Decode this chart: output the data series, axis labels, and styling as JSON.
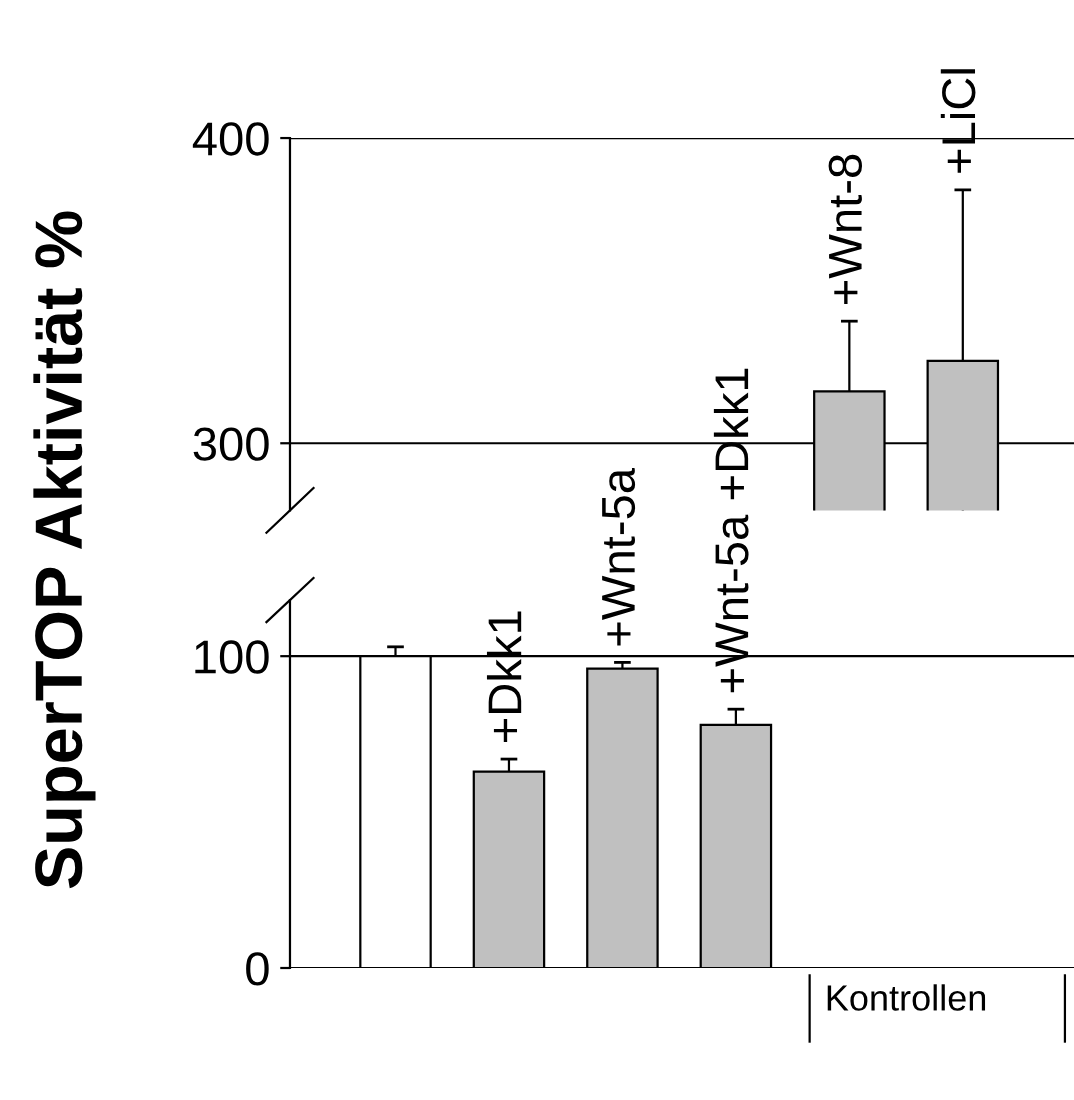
{
  "chart_data": [
    {
      "type": "bar",
      "ylabel": "SuperTOP Aktivität %",
      "categories": [
        null,
        null,
        null,
        null,
        "+Wnt-8",
        "+LiCl"
      ],
      "values": [
        null,
        null,
        null,
        null,
        317,
        327
      ],
      "errors": [
        null,
        null,
        null,
        null,
        23,
        56
      ],
      "colors": [
        "#ffffff",
        "#c0c0c0",
        "#c0c0c0",
        "#c0c0c0",
        "#c0c0c0",
        "#c0c0c0"
      ],
      "ylim": [
        278,
        400
      ],
      "yticks": [
        300,
        400
      ],
      "grid": "y"
    },
    {
      "type": "bar",
      "categories": [
        null,
        "+Dkk1",
        "+Wnt-5a",
        "+Wnt-5a +Dkk1",
        null,
        null
      ],
      "values": [
        100,
        63,
        96,
        78,
        null,
        null
      ],
      "errors": [
        3,
        4,
        2,
        5,
        null,
        null
      ],
      "colors": [
        "#ffffff",
        "#c0c0c0",
        "#c0c0c0",
        "#c0c0c0",
        "#c0c0c0",
        "#c0c0c0"
      ],
      "ylim": [
        0,
        118
      ],
      "yticks": [
        0,
        100
      ],
      "grid": "y",
      "annotations": [
        "Kontrollen"
      ]
    }
  ]
}
